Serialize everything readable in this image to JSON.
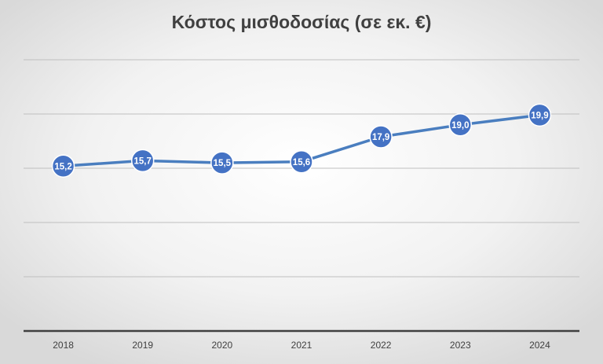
{
  "chart_data": {
    "type": "line",
    "title": "Κόστος μισθοδοσίας (σε εκ. €)",
    "categories": [
      "2018",
      "2019",
      "2020",
      "2021",
      "2022",
      "2023",
      "2024"
    ],
    "values": [
      15.2,
      15.7,
      15.5,
      15.6,
      17.9,
      19.0,
      19.9
    ],
    "value_labels": [
      "15,2",
      "15,7",
      "15,5",
      "15,6",
      "17,9",
      "19,0",
      "19,9"
    ],
    "color": "#4a7ebf",
    "ylim": [
      0,
      25
    ],
    "yticks": [
      0,
      5,
      10,
      15,
      20,
      25
    ],
    "grid": true
  }
}
